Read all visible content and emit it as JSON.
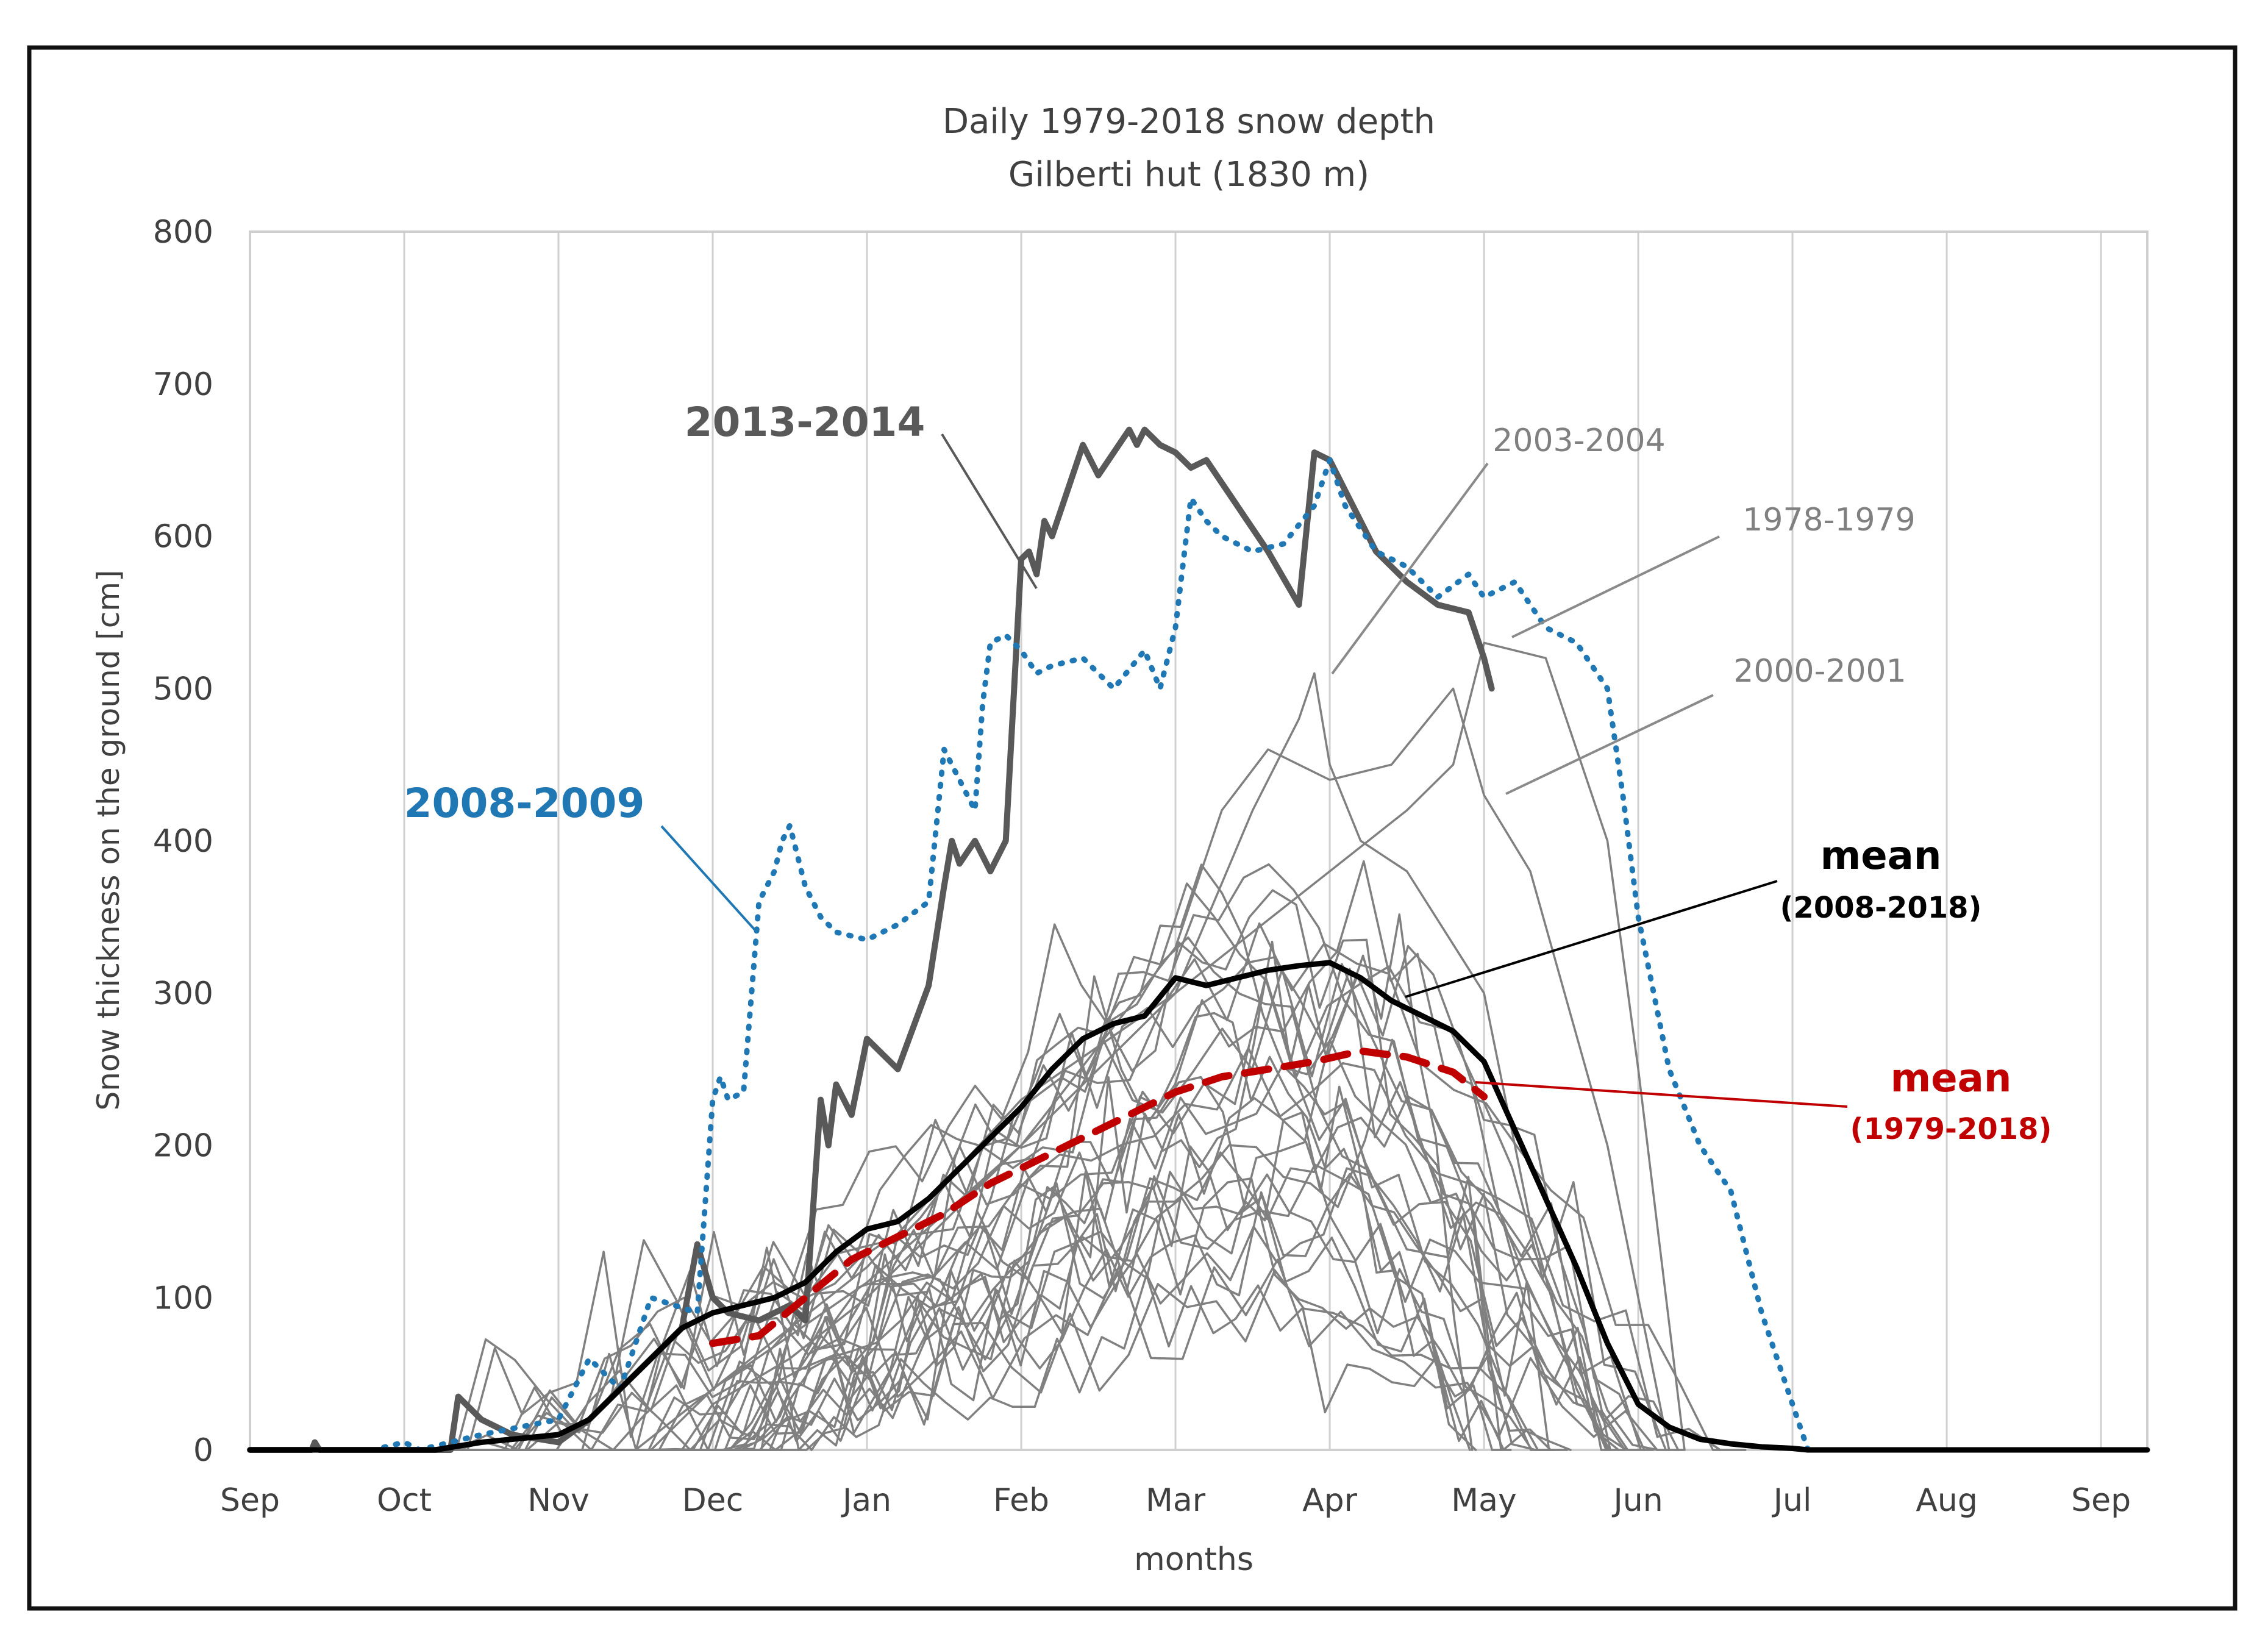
{
  "colors": {
    "frame": "#111111",
    "grid": "#d0d0d0",
    "axis_text": "#404040",
    "gray_series": "#808080",
    "series_2013_2014": "#595959",
    "series_2008_2009": "#1f77b4",
    "mean_2008_2018": "#000000",
    "mean_1979_2018": "#c00000"
  },
  "chart_data": {
    "type": "line",
    "title": "Daily 1979-2018 snow depth",
    "subtitle": "Gilberti hut (1830 m)",
    "xlabel": "months",
    "ylabel": "Snow thickness on the ground [cm]",
    "ylim": [
      0,
      800
    ],
    "yticks": [
      0,
      100,
      200,
      300,
      400,
      500,
      600,
      700,
      800
    ],
    "xlim": [
      0,
      12.3
    ],
    "xticks": [
      {
        "v": 0,
        "label": "Sep"
      },
      {
        "v": 1,
        "label": "Oct"
      },
      {
        "v": 2,
        "label": "Nov"
      },
      {
        "v": 3,
        "label": "Dec"
      },
      {
        "v": 4,
        "label": "Jan"
      },
      {
        "v": 5,
        "label": "Feb"
      },
      {
        "v": 6,
        "label": "Mar"
      },
      {
        "v": 7,
        "label": "Apr"
      },
      {
        "v": 8,
        "label": "May"
      },
      {
        "v": 9,
        "label": "Jun"
      },
      {
        "v": 10,
        "label": "Jul"
      },
      {
        "v": 11,
        "label": "Aug"
      },
      {
        "v": 12,
        "label": "Sep"
      }
    ],
    "grid": "vertical",
    "series": [
      {
        "name": "2013-2014",
        "style": "bold",
        "x": [
          0,
          0.4,
          0.42,
          0.45,
          0.5,
          1.3,
          1.35,
          1.5,
          1.7,
          2.0,
          2.2,
          2.4,
          2.6,
          2.8,
          2.9,
          3.0,
          3.1,
          3.3,
          3.4,
          3.5,
          3.6,
          3.7,
          3.75,
          3.8,
          3.9,
          4.0,
          4.1,
          4.2,
          4.4,
          4.5,
          4.55,
          4.6,
          4.7,
          4.75,
          4.8,
          4.9,
          5.0,
          5.05,
          5.1,
          5.15,
          5.2,
          5.3,
          5.4,
          5.5,
          5.6,
          5.7,
          5.75,
          5.8,
          5.9,
          6.0,
          6.1,
          6.2,
          6.4,
          6.6,
          6.8,
          6.9,
          7.0,
          7.1,
          7.3,
          7.5,
          7.7,
          7.9,
          8.0,
          8.05
        ],
        "y": [
          0,
          0,
          5,
          0,
          0,
          0,
          35,
          20,
          10,
          5,
          20,
          40,
          60,
          80,
          135,
          100,
          90,
          85,
          90,
          95,
          85,
          230,
          200,
          240,
          220,
          270,
          260,
          250,
          305,
          370,
          400,
          385,
          400,
          390,
          380,
          400,
          585,
          590,
          575,
          610,
          600,
          630,
          660,
          640,
          655,
          670,
          660,
          670,
          660,
          655,
          645,
          650,
          620,
          590,
          555,
          655,
          650,
          630,
          590,
          570,
          555,
          550,
          520,
          500
        ]
      },
      {
        "name": "2008-2009",
        "style": "dotted",
        "x": [
          0,
          0.8,
          1.0,
          1.1,
          1.5,
          2.0,
          2.2,
          2.4,
          2.6,
          2.9,
          3.0,
          3.05,
          3.1,
          3.2,
          3.3,
          3.4,
          3.45,
          3.5,
          3.55,
          3.6,
          3.7,
          3.8,
          4.0,
          4.2,
          4.4,
          4.5,
          4.6,
          4.7,
          4.75,
          4.8,
          4.9,
          5.0,
          5.1,
          5.2,
          5.4,
          5.6,
          5.8,
          5.9,
          6.0,
          6.1,
          6.2,
          6.3,
          6.5,
          6.7,
          6.9,
          7.0,
          7.1,
          7.3,
          7.5,
          7.7,
          7.9,
          8.0,
          8.2,
          8.4,
          8.6,
          8.8,
          8.9,
          9.0,
          9.2,
          9.4,
          9.6,
          9.8,
          9.9,
          10.0,
          10.1,
          12.3
        ],
        "y": [
          0,
          0,
          5,
          0,
          10,
          20,
          60,
          40,
          100,
          90,
          230,
          245,
          230,
          235,
          360,
          380,
          400,
          410,
          390,
          370,
          350,
          340,
          335,
          345,
          360,
          460,
          440,
          420,
          490,
          530,
          535,
          525,
          510,
          515,
          520,
          500,
          525,
          500,
          540,
          625,
          610,
          600,
          590,
          595,
          620,
          650,
          620,
          590,
          580,
          560,
          575,
          560,
          570,
          540,
          530,
          500,
          430,
          350,
          250,
          200,
          170,
          90,
          60,
          30,
          0,
          0
        ]
      },
      {
        "name": "2003-2004",
        "style": "thin",
        "x": [
          0,
          2.8,
          3.0,
          3.5,
          4.0,
          5.0,
          6.0,
          6.5,
          6.8,
          6.9,
          7.0,
          7.2,
          7.5,
          8.0,
          8.3,
          8.6,
          8.8
        ],
        "y": [
          0,
          0,
          30,
          60,
          100,
          200,
          300,
          420,
          480,
          510,
          450,
          400,
          380,
          300,
          150,
          40,
          0
        ]
      },
      {
        "name": "1978-1979",
        "style": "thin",
        "x": [
          0,
          2.5,
          3.0,
          4.0,
          5.0,
          6.0,
          7.0,
          7.5,
          7.8,
          7.9,
          8.0,
          8.4,
          8.8,
          9.0,
          9.3
        ],
        "y": [
          0,
          0,
          40,
          120,
          230,
          300,
          380,
          420,
          450,
          490,
          530,
          520,
          400,
          250,
          0
        ]
      },
      {
        "name": "2000-2001",
        "style": "thin",
        "x": [
          0,
          2.6,
          3.0,
          4.0,
          5.0,
          6.0,
          6.3,
          6.6,
          7.0,
          7.4,
          7.8,
          8.0,
          8.3,
          8.8,
          9.2
        ],
        "y": [
          0,
          0,
          40,
          110,
          200,
          330,
          420,
          460,
          440,
          450,
          500,
          430,
          380,
          200,
          0
        ]
      },
      {
        "name": "mean (2008-2018)",
        "style": "mean-black",
        "x": [
          0,
          1.2,
          1.5,
          1.8,
          2.0,
          2.2,
          2.4,
          2.6,
          2.8,
          3.0,
          3.2,
          3.4,
          3.6,
          3.8,
          4.0,
          4.2,
          4.4,
          4.6,
          4.8,
          5.0,
          5.2,
          5.4,
          5.6,
          5.8,
          6.0,
          6.2,
          6.4,
          6.6,
          6.8,
          7.0,
          7.2,
          7.4,
          7.6,
          7.8,
          8.0,
          8.2,
          8.4,
          8.6,
          8.8,
          9.0,
          9.2,
          9.4,
          9.6,
          9.8,
          10.0,
          10.1,
          12.3
        ],
        "y": [
          0,
          0,
          5,
          8,
          10,
          20,
          40,
          60,
          80,
          90,
          95,
          100,
          110,
          130,
          145,
          150,
          165,
          185,
          205,
          225,
          250,
          270,
          280,
          285,
          310,
          305,
          310,
          315,
          318,
          320,
          310,
          295,
          285,
          275,
          255,
          210,
          165,
          120,
          70,
          30,
          15,
          7,
          4,
          2,
          1,
          0,
          0
        ]
      },
      {
        "name": "mean (1979-2018)",
        "style": "mean-red",
        "x": [
          3.0,
          3.3,
          3.6,
          3.9,
          4.2,
          4.5,
          4.8,
          5.1,
          5.4,
          5.7,
          6.0,
          6.3,
          6.6,
          6.9,
          7.2,
          7.5,
          7.8,
          8.0
        ],
        "y": [
          70,
          75,
          100,
          125,
          140,
          155,
          175,
          190,
          205,
          220,
          235,
          245,
          250,
          255,
          262,
          258,
          248,
          232
        ]
      }
    ],
    "annotations": [
      {
        "text": "2013-2014",
        "series": "2013-2014"
      },
      {
        "text": "2008-2009",
        "series": "2008-2009"
      },
      {
        "text": "2003-2004",
        "series": "2003-2004"
      },
      {
        "text": "1978-1979",
        "series": "1978-1979"
      },
      {
        "text": "2000-2001",
        "series": "2000-2001"
      },
      {
        "text": "mean",
        "sub": "(2008-2018)",
        "series": "mean (2008-2018)"
      },
      {
        "text": "mean",
        "sub": "(1979-2018)",
        "series": "mean (1979-2018)"
      }
    ]
  }
}
